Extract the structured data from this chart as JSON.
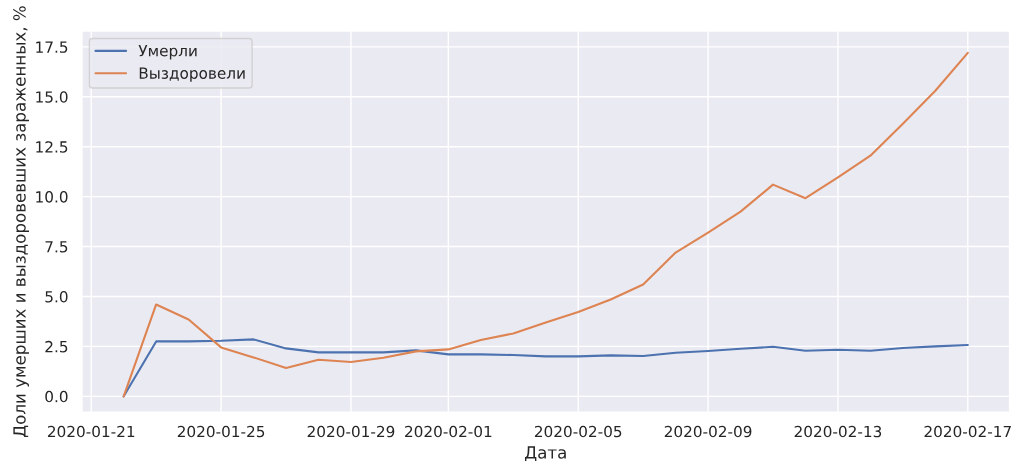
{
  "chart_data": {
    "type": "line",
    "xlabel": "Дата",
    "ylabel": "Доли умерших и выздоровевших зараженных, %",
    "x": [
      "2020-01-22",
      "2020-01-23",
      "2020-01-24",
      "2020-01-25",
      "2020-01-26",
      "2020-01-27",
      "2020-01-28",
      "2020-01-29",
      "2020-01-30",
      "2020-01-31",
      "2020-02-01",
      "2020-02-02",
      "2020-02-03",
      "2020-02-04",
      "2020-02-05",
      "2020-02-06",
      "2020-02-07",
      "2020-02-08",
      "2020-02-09",
      "2020-02-10",
      "2020-02-11",
      "2020-02-12",
      "2020-02-13",
      "2020-02-14",
      "2020-02-15",
      "2020-02-16",
      "2020-02-17"
    ],
    "series": [
      {
        "name": "Умерли",
        "color": "#4c72b0",
        "values": [
          0,
          2.75,
          2.75,
          2.78,
          2.85,
          2.4,
          2.2,
          2.2,
          2.2,
          2.3,
          2.1,
          2.1,
          2.07,
          2.0,
          2.0,
          2.05,
          2.02,
          2.18,
          2.27,
          2.38,
          2.48,
          2.28,
          2.33,
          2.28,
          2.42,
          2.5,
          2.57
        ]
      },
      {
        "name": "Выздоровели",
        "color": "#dd8452",
        "values": [
          0,
          4.6,
          3.85,
          2.45,
          1.95,
          1.42,
          1.83,
          1.72,
          1.93,
          2.25,
          2.35,
          2.82,
          3.15,
          3.7,
          4.22,
          4.85,
          5.6,
          7.2,
          8.2,
          9.25,
          10.6,
          9.92,
          10.97,
          12.05,
          13.65,
          15.3,
          17.2
        ]
      }
    ],
    "xlim": [
      "2020-01-20T17:00",
      "2020-02-18T07:00"
    ],
    "xticks": [
      "2020-01-21",
      "2020-01-25",
      "2020-01-29",
      "2020-02-01",
      "2020-02-05",
      "2020-02-09",
      "2020-02-13",
      "2020-02-17"
    ],
    "ylim": [
      -0.8,
      18.3
    ],
    "yticks": [
      {
        "value": 0,
        "label": "0.0"
      },
      {
        "value": 2.5,
        "label": "2.5"
      },
      {
        "value": 5,
        "label": "5.0"
      },
      {
        "value": 7.5,
        "label": "7.5"
      },
      {
        "value": 10,
        "label": "10.0"
      },
      {
        "value": 12.5,
        "label": "12.5"
      },
      {
        "value": 15,
        "label": "15.0"
      },
      {
        "value": 17.5,
        "label": "17.5"
      }
    ],
    "grid": true,
    "legend": "top left",
    "marker": "none",
    "line_style": "solid"
  }
}
